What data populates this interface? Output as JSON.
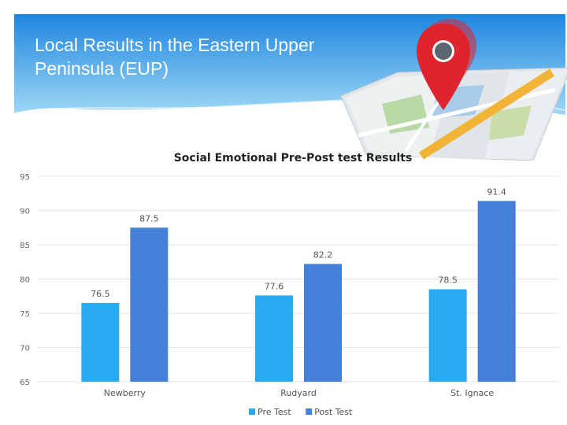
{
  "slide": {
    "title": "Local Results in the Eastern Upper Peninsula (EUP)"
  },
  "colors": {
    "header_top": "#1e86e0",
    "header_bottom": "#9fd8f6",
    "pre_test": "#2aaaf0",
    "post_test": "#4480d8",
    "map_pin": "#e0242e",
    "map_road": "#f2b437"
  },
  "icons": {
    "map": "map-icon",
    "pin": "location-pin-icon"
  },
  "chart_data": {
    "type": "bar",
    "title": "Social Emotional Pre-Post test  Results",
    "xlabel": "",
    "ylabel": "",
    "ylim": [
      65,
      95
    ],
    "yticks": [
      65,
      70,
      75,
      80,
      85,
      90,
      95
    ],
    "grid": true,
    "legend": "bottom",
    "categories": [
      "Newberry",
      "Rudyard",
      "St. Ignace"
    ],
    "series": [
      {
        "name": "Pre Test",
        "values": [
          76.5,
          77.6,
          78.5
        ]
      },
      {
        "name": "Post Test",
        "values": [
          87.5,
          82.2,
          91.4
        ]
      }
    ]
  }
}
